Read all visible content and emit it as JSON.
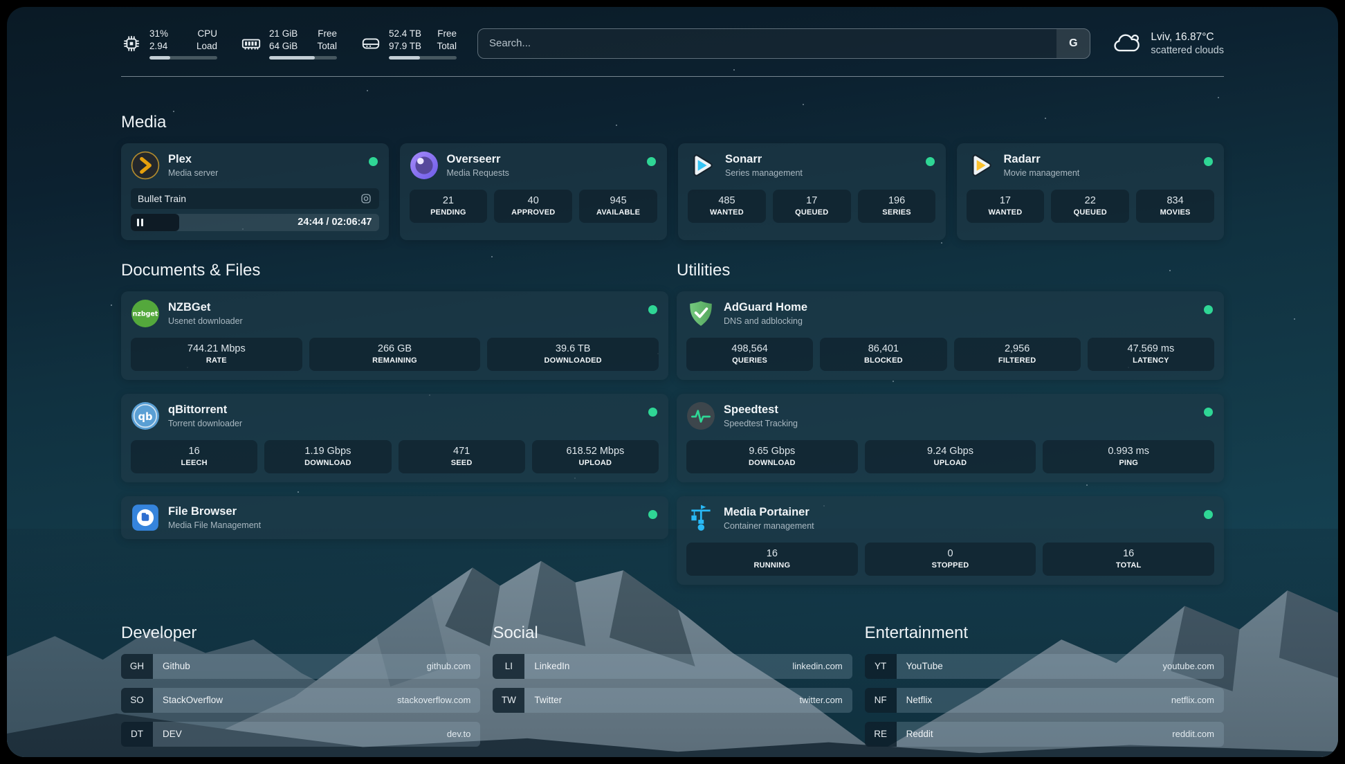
{
  "header": {
    "resources": [
      {
        "icon": "cpu-icon",
        "value_top": "31%",
        "value_bottom": "2.94",
        "label_top": "CPU",
        "label_bottom": "Load",
        "progress_pct": 31
      },
      {
        "icon": "memory-icon",
        "value_top": "21 GiB",
        "value_bottom": "64 GiB",
        "label_top": "Free",
        "label_bottom": "Total",
        "progress_pct": 67
      },
      {
        "icon": "disk-icon",
        "value_top": "52.4 TB",
        "value_bottom": "97.9 TB",
        "label_top": "Free",
        "label_bottom": "Total",
        "progress_pct": 46
      }
    ],
    "search": {
      "placeholder": "Search...",
      "button_label": "G"
    },
    "weather": {
      "icon": "cloud-icon",
      "line1": "Lviv, 16.87°C",
      "line2": "scattered clouds"
    }
  },
  "sections": {
    "media": {
      "title": "Media",
      "services": [
        {
          "icon": "plex-icon",
          "name": "Plex",
          "description": "Media server",
          "status": "online",
          "now_playing": {
            "title": "Bullet Train",
            "time": "24:44 / 02:06:47",
            "progress_pct": 19.5
          }
        },
        {
          "icon": "overseerr-icon",
          "name": "Overseerr",
          "description": "Media Requests",
          "status": "online",
          "stats": [
            {
              "value": "21",
              "label": "PENDING"
            },
            {
              "value": "40",
              "label": "APPROVED"
            },
            {
              "value": "945",
              "label": "AVAILABLE"
            }
          ]
        },
        {
          "icon": "sonarr-icon",
          "name": "Sonarr",
          "description": "Series management",
          "status": "online",
          "stats": [
            {
              "value": "485",
              "label": "WANTED"
            },
            {
              "value": "17",
              "label": "QUEUED"
            },
            {
              "value": "196",
              "label": "SERIES"
            }
          ]
        },
        {
          "icon": "radarr-icon",
          "name": "Radarr",
          "description": "Movie management",
          "status": "online",
          "stats": [
            {
              "value": "17",
              "label": "WANTED"
            },
            {
              "value": "22",
              "label": "QUEUED"
            },
            {
              "value": "834",
              "label": "MOVIES"
            }
          ]
        }
      ]
    },
    "documents": {
      "title": "Documents & Files",
      "services": [
        {
          "icon": "nzbget-icon",
          "name": "NZBGet",
          "description": "Usenet downloader",
          "status": "online",
          "stats": [
            {
              "value": "744.21 Mbps",
              "label": "RATE"
            },
            {
              "value": "266 GB",
              "label": "REMAINING"
            },
            {
              "value": "39.6 TB",
              "label": "DOWNLOADED"
            }
          ]
        },
        {
          "icon": "qbittorrent-icon",
          "name": "qBittorrent",
          "description": "Torrent downloader",
          "status": "online",
          "stats": [
            {
              "value": "16",
              "label": "LEECH"
            },
            {
              "value": "1.19 Gbps",
              "label": "DOWNLOAD"
            },
            {
              "value": "471",
              "label": "SEED"
            },
            {
              "value": "618.52 Mbps",
              "label": "UPLOAD"
            }
          ]
        },
        {
          "icon": "filebrowser-icon",
          "name": "File Browser",
          "description": "Media File Management",
          "status": "online"
        }
      ]
    },
    "utilities": {
      "title": "Utilities",
      "services": [
        {
          "icon": "adguard-icon",
          "name": "AdGuard Home",
          "description": "DNS and adblocking",
          "status": "online",
          "stats": [
            {
              "value": "498,564",
              "label": "QUERIES"
            },
            {
              "value": "86,401",
              "label": "BLOCKED"
            },
            {
              "value": "2,956",
              "label": "FILTERED"
            },
            {
              "value": "47.569 ms",
              "label": "LATENCY"
            }
          ]
        },
        {
          "icon": "speedtest-icon",
          "name": "Speedtest",
          "description": "Speedtest Tracking",
          "status": "online",
          "stats": [
            {
              "value": "9.65 Gbps",
              "label": "DOWNLOAD"
            },
            {
              "value": "9.24 Gbps",
              "label": "UPLOAD"
            },
            {
              "value": "0.993 ms",
              "label": "PING"
            }
          ]
        },
        {
          "icon": "portainer-icon",
          "name": "Media Portainer",
          "description": "Container management",
          "status": "online",
          "stats": [
            {
              "value": "16",
              "label": "RUNNING"
            },
            {
              "value": "0",
              "label": "STOPPED"
            },
            {
              "value": "16",
              "label": "TOTAL"
            }
          ]
        }
      ]
    },
    "bookmarks": [
      {
        "title": "Developer",
        "links": [
          {
            "abbr": "GH",
            "name": "Github",
            "url": "github.com"
          },
          {
            "abbr": "SO",
            "name": "StackOverflow",
            "url": "stackoverflow.com"
          },
          {
            "abbr": "DT",
            "name": "DEV",
            "url": "dev.to"
          }
        ]
      },
      {
        "title": "Social",
        "links": [
          {
            "abbr": "LI",
            "name": "LinkedIn",
            "url": "linkedin.com"
          },
          {
            "abbr": "TW",
            "name": "Twitter",
            "url": "twitter.com"
          }
        ]
      },
      {
        "title": "Entertainment",
        "links": [
          {
            "abbr": "YT",
            "name": "YouTube",
            "url": "youtube.com"
          },
          {
            "abbr": "NF",
            "name": "Netflix",
            "url": "netflix.com"
          },
          {
            "abbr": "RE",
            "name": "Reddit",
            "url": "reddit.com"
          }
        ]
      }
    ]
  },
  "colors": {
    "status_online": "#2fd695",
    "accent_plex": "#e5a00d"
  }
}
